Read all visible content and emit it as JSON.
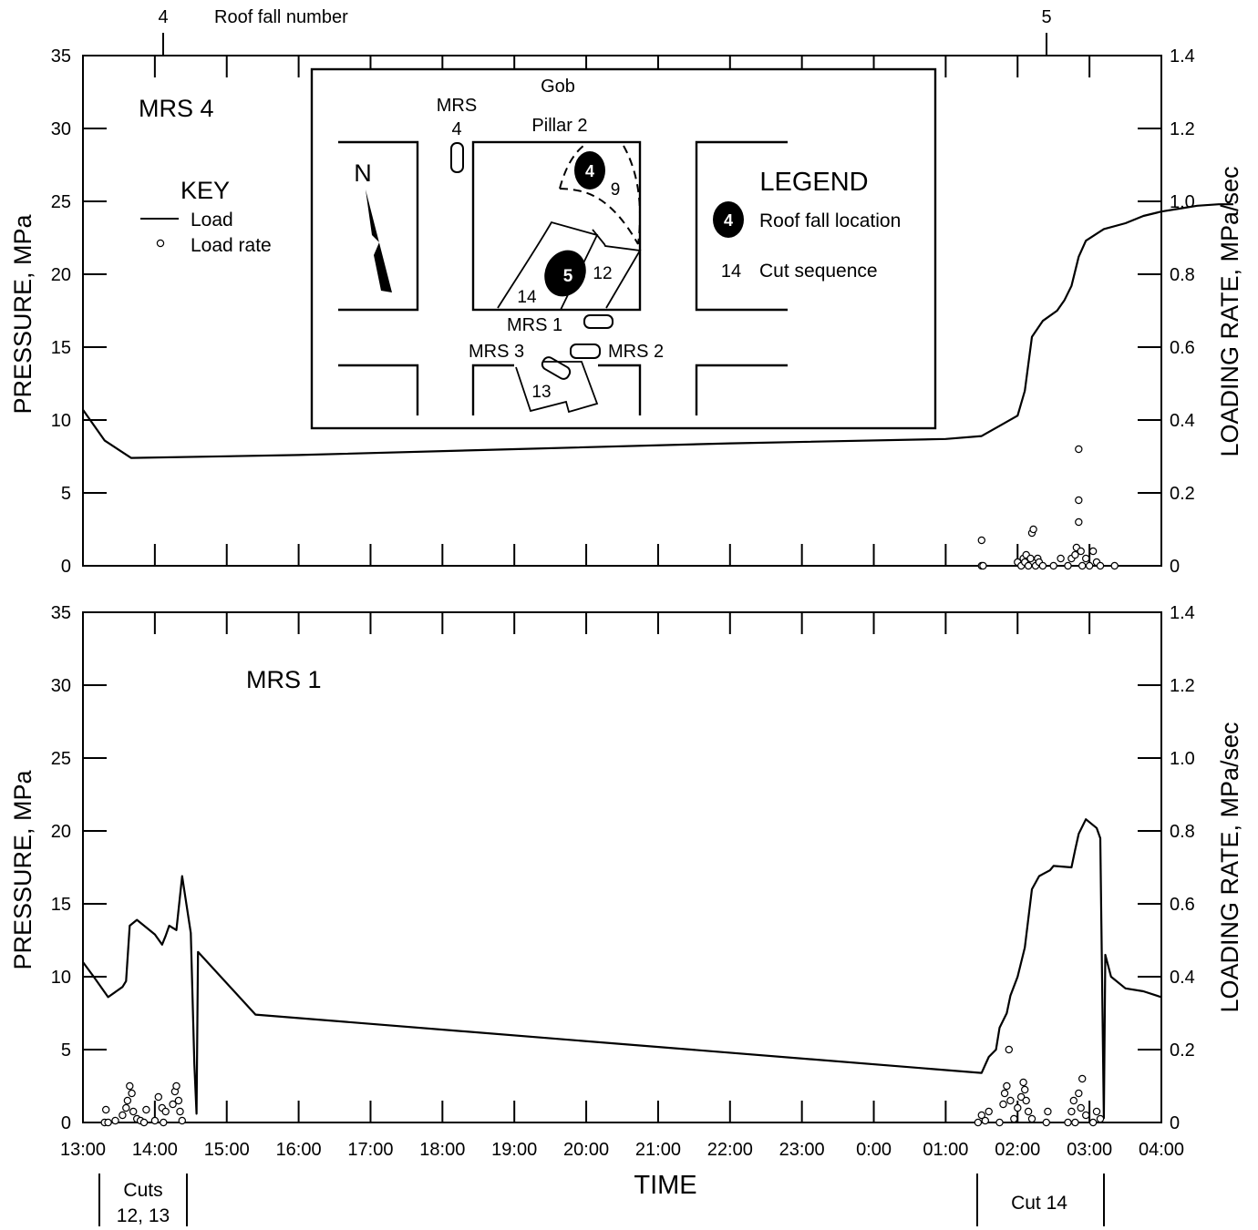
{
  "chart_data": [
    {
      "type": "line",
      "panel_label": "MRS 4",
      "xlabel": "",
      "ylabel": "PRESSURE, MPa",
      "y2label": "LOADING RATE, MPa/sec",
      "ylim": [
        0,
        35
      ],
      "y2lim": [
        0,
        1.4
      ],
      "yticks": [
        "0",
        "5",
        "10",
        "15",
        "20",
        "25",
        "30",
        "35"
      ],
      "y2ticks": [
        "0",
        "0.2",
        "0.4",
        "0.6",
        "0.8",
        "1.0",
        "1.2",
        "1.4"
      ],
      "top_axis": {
        "label": "Roof fall number",
        "markers": [
          {
            "label": "4",
            "x": 13.9
          },
          {
            "label": "5",
            "x": 26.7
          }
        ]
      },
      "key": {
        "title": "KEY",
        "items": [
          "Load",
          "Load rate"
        ]
      },
      "series": [
        {
          "name": "Load",
          "kind": "line",
          "points": [
            [
              13.0,
              10.7
            ],
            [
              13.3,
              8.6
            ],
            [
              13.67,
              7.4
            ],
            [
              16.0,
              7.6
            ],
            [
              19.0,
              8.0
            ],
            [
              22.0,
              8.4
            ],
            [
              25.0,
              8.7
            ],
            [
              25.5,
              8.9
            ],
            [
              25.75,
              9.6
            ],
            [
              26.0,
              10.3
            ],
            [
              26.1,
              12.0
            ],
            [
              26.2,
              15.7
            ],
            [
              26.35,
              16.8
            ],
            [
              26.55,
              17.5
            ],
            [
              26.65,
              18.2
            ],
            [
              26.75,
              19.2
            ],
            [
              26.85,
              21.2
            ],
            [
              26.95,
              22.3
            ],
            [
              27.2,
              23.1
            ],
            [
              27.5,
              23.5
            ],
            [
              27.75,
              24.0
            ],
            [
              28.0,
              24.3
            ],
            [
              28.25,
              24.5
            ],
            [
              28.5,
              24.7
            ],
            [
              28.8,
              24.8
            ],
            [
              29.0,
              24.8
            ]
          ]
        },
        {
          "name": "Load rate",
          "kind": "scatter",
          "points": [
            [
              25.5,
              0.0
            ],
            [
              25.52,
              0.0
            ],
            [
              25.5,
              0.07
            ],
            [
              26.0,
              0.01
            ],
            [
              26.05,
              0.0
            ],
            [
              26.08,
              0.02
            ],
            [
              26.1,
              0.01
            ],
            [
              26.12,
              0.03
            ],
            [
              26.15,
              0.0
            ],
            [
              26.18,
              0.02
            ],
            [
              26.2,
              0.09
            ],
            [
              26.22,
              0.1
            ],
            [
              26.25,
              0.0
            ],
            [
              26.28,
              0.02
            ],
            [
              26.3,
              0.01
            ],
            [
              26.35,
              0.0
            ],
            [
              26.5,
              0.0
            ],
            [
              26.6,
              0.02
            ],
            [
              26.7,
              0.0
            ],
            [
              26.75,
              0.02
            ],
            [
              26.8,
              0.03
            ],
            [
              26.82,
              0.05
            ],
            [
              26.85,
              0.12
            ],
            [
              26.85,
              0.18
            ],
            [
              26.85,
              0.32
            ],
            [
              26.88,
              0.04
            ],
            [
              26.9,
              0.0
            ],
            [
              26.95,
              0.02
            ],
            [
              27.0,
              0.0
            ],
            [
              27.05,
              0.04
            ],
            [
              27.1,
              0.01
            ],
            [
              27.15,
              0.0
            ],
            [
              27.35,
              0.0
            ]
          ]
        }
      ]
    },
    {
      "type": "line",
      "panel_label": "MRS 1",
      "xlabel": "TIME",
      "ylabel": "PRESSURE, MPa",
      "y2label": "LOADING RATE, MPa/sec",
      "ylim": [
        0,
        35
      ],
      "y2lim": [
        0,
        1.4
      ],
      "yticks": [
        "0",
        "5",
        "10",
        "15",
        "20",
        "25",
        "30",
        "35"
      ],
      "y2ticks": [
        "0",
        "0.2",
        "0.4",
        "0.6",
        "0.8",
        "1.0",
        "1.2",
        "1.4"
      ],
      "xticks": [
        "13:00",
        "14:00",
        "15:00",
        "16:00",
        "17:00",
        "18:00",
        "19:00",
        "20:00",
        "21:00",
        "22:00",
        "23:00",
        "0:00",
        "01:00",
        "02:00",
        "03:00",
        "04:00"
      ],
      "xlim": [
        13,
        28
      ],
      "cut_brackets": [
        {
          "lines": [
            "Cuts",
            "12, 13"
          ],
          "start": 13.25,
          "end": 14.45
        },
        {
          "lines": [
            "Cut 14"
          ],
          "start": 25.4,
          "end": 27.15
        }
      ],
      "series": [
        {
          "name": "Load",
          "kind": "line",
          "points": [
            [
              13.0,
              11.0
            ],
            [
              13.15,
              10.0
            ],
            [
              13.35,
              8.6
            ],
            [
              13.55,
              9.3
            ],
            [
              13.6,
              9.7
            ],
            [
              13.65,
              13.5
            ],
            [
              13.75,
              13.9
            ],
            [
              14.0,
              12.9
            ],
            [
              14.1,
              12.2
            ],
            [
              14.15,
              12.8
            ],
            [
              14.2,
              13.5
            ],
            [
              14.3,
              13.2
            ],
            [
              14.38,
              16.9
            ],
            [
              14.5,
              13.0
            ],
            [
              14.55,
              4.0
            ],
            [
              14.58,
              0.6
            ],
            [
              14.6,
              11.7
            ],
            [
              15.4,
              7.4
            ],
            [
              25.5,
              3.4
            ],
            [
              25.6,
              4.5
            ],
            [
              25.7,
              5.0
            ],
            [
              25.75,
              6.5
            ],
            [
              25.85,
              7.5
            ],
            [
              25.9,
              8.7
            ],
            [
              26.0,
              10.0
            ],
            [
              26.1,
              12.0
            ],
            [
              26.2,
              16.0
            ],
            [
              26.3,
              16.9
            ],
            [
              26.45,
              17.3
            ],
            [
              26.5,
              17.6
            ],
            [
              26.75,
              17.5
            ],
            [
              26.8,
              18.7
            ],
            [
              26.85,
              19.8
            ],
            [
              26.95,
              20.8
            ],
            [
              27.1,
              20.2
            ],
            [
              27.15,
              19.5
            ],
            [
              27.2,
              0.3
            ],
            [
              27.22,
              11.5
            ],
            [
              27.3,
              10.0
            ],
            [
              27.5,
              9.2
            ],
            [
              27.75,
              9.0
            ],
            [
              28.0,
              8.6
            ]
          ]
        },
        {
          "name": "Load rate",
          "kind": "scatter",
          "points": [
            [
              13.3,
              0.0
            ],
            [
              13.32,
              0.035
            ],
            [
              13.35,
              0.0
            ],
            [
              13.45,
              0.005
            ],
            [
              13.55,
              0.02
            ],
            [
              13.6,
              0.04
            ],
            [
              13.62,
              0.06
            ],
            [
              13.65,
              0.1
            ],
            [
              13.68,
              0.08
            ],
            [
              13.7,
              0.03
            ],
            [
              13.75,
              0.01
            ],
            [
              13.8,
              0.005
            ],
            [
              13.85,
              0.0
            ],
            [
              13.88,
              0.035
            ],
            [
              14.0,
              0.005
            ],
            [
              14.05,
              0.07
            ],
            [
              14.1,
              0.04
            ],
            [
              14.12,
              0.0
            ],
            [
              14.15,
              0.03
            ],
            [
              14.25,
              0.05
            ],
            [
              14.28,
              0.085
            ],
            [
              14.3,
              0.1
            ],
            [
              14.33,
              0.06
            ],
            [
              14.35,
              0.03
            ],
            [
              14.38,
              0.005
            ],
            [
              25.45,
              0.0
            ],
            [
              25.5,
              0.02
            ],
            [
              25.55,
              0.005
            ],
            [
              25.6,
              0.03
            ],
            [
              25.75,
              0.0
            ],
            [
              25.8,
              0.05
            ],
            [
              25.82,
              0.08
            ],
            [
              25.85,
              0.1
            ],
            [
              25.88,
              0.2
            ],
            [
              25.9,
              0.06
            ],
            [
              25.95,
              0.01
            ],
            [
              26.0,
              0.04
            ],
            [
              26.05,
              0.07
            ],
            [
              26.08,
              0.11
            ],
            [
              26.1,
              0.09
            ],
            [
              26.12,
              0.06
            ],
            [
              26.15,
              0.03
            ],
            [
              26.2,
              0.01
            ],
            [
              26.4,
              0.0
            ],
            [
              26.42,
              0.03
            ],
            [
              26.7,
              0.0
            ],
            [
              26.75,
              0.03
            ],
            [
              26.78,
              0.06
            ],
            [
              26.8,
              0.0
            ],
            [
              26.85,
              0.08
            ],
            [
              26.88,
              0.04
            ],
            [
              26.9,
              0.12
            ],
            [
              26.95,
              0.02
            ],
            [
              27.05,
              0.0
            ],
            [
              27.1,
              0.03
            ],
            [
              27.15,
              0.01
            ]
          ]
        }
      ]
    }
  ],
  "inset": {
    "gob_label": "Gob",
    "pillar_label": "Pillar 2",
    "mrs4_label_line1": "MRS",
    "mrs4_label_line2": "4",
    "north_label": "N",
    "legend_title": "LEGEND",
    "legend_fall_symbol": "4",
    "legend_fall_text": "Roof fall location",
    "legend_cut_symbol": "14",
    "legend_cut_text": "Cut sequence",
    "fall4": "4",
    "fall5": "5",
    "cut9": "9",
    "cut12": "12",
    "cut13": "13",
    "cut14": "14",
    "mrs1_label": "MRS 1",
    "mrs2_label": "MRS 2",
    "mrs3_label": "MRS 3"
  }
}
